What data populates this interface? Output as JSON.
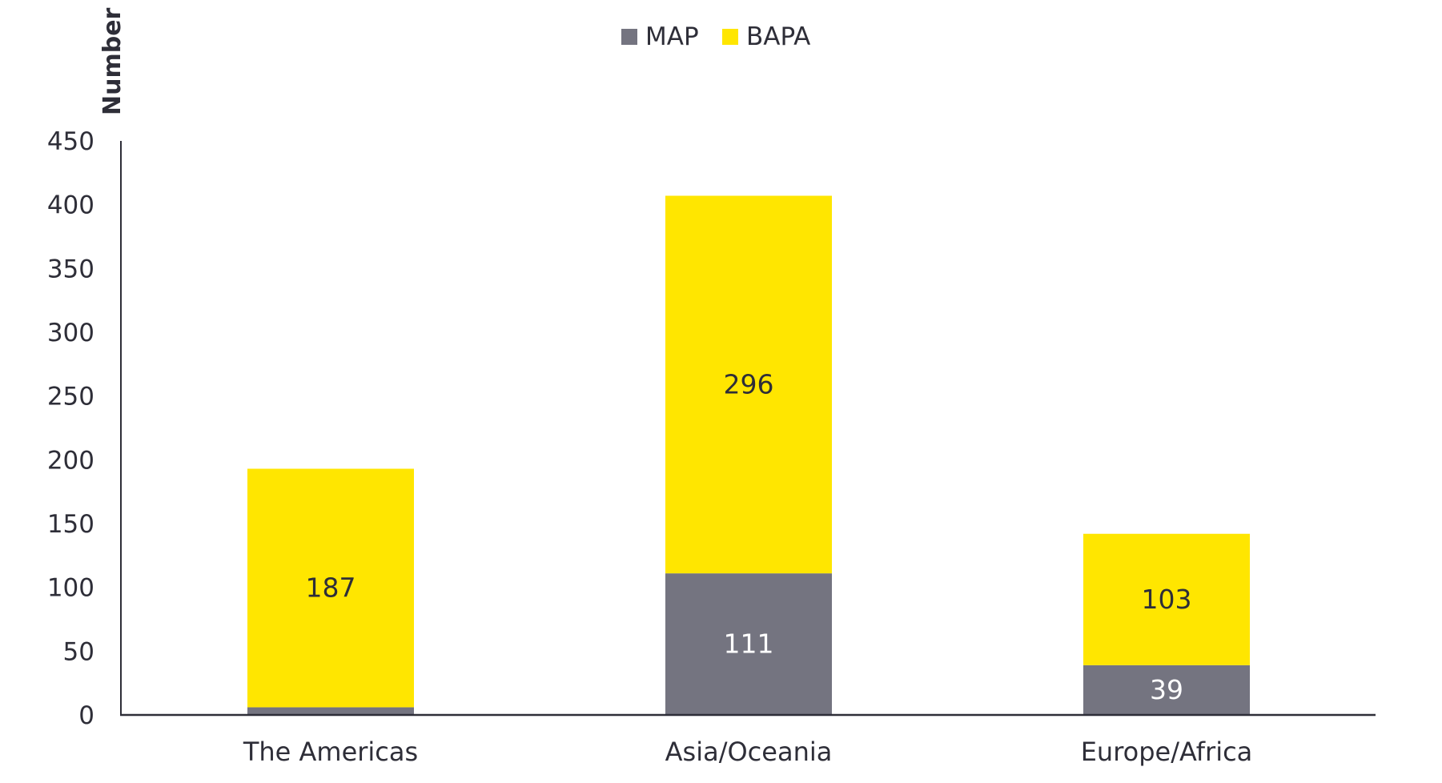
{
  "chart_data": {
    "type": "bar",
    "stacked": true,
    "title": "",
    "xlabel": "",
    "ylabel": "Number",
    "ylim": [
      0,
      450
    ],
    "yticks": [
      0,
      50,
      100,
      150,
      200,
      250,
      300,
      350,
      400,
      450
    ],
    "grid": false,
    "legend_position": "top-center",
    "categories": [
      "The Americas",
      "Asia/Oceania",
      "Europe/Africa"
    ],
    "series": [
      {
        "name": "MAP",
        "color": "#747480",
        "label_color": "#ffffff",
        "values": [
          6,
          111,
          39
        ]
      },
      {
        "name": "BAPA",
        "color": "#ffe600",
        "label_color": "#2e2e38",
        "values": [
          187,
          296,
          103
        ]
      }
    ]
  }
}
